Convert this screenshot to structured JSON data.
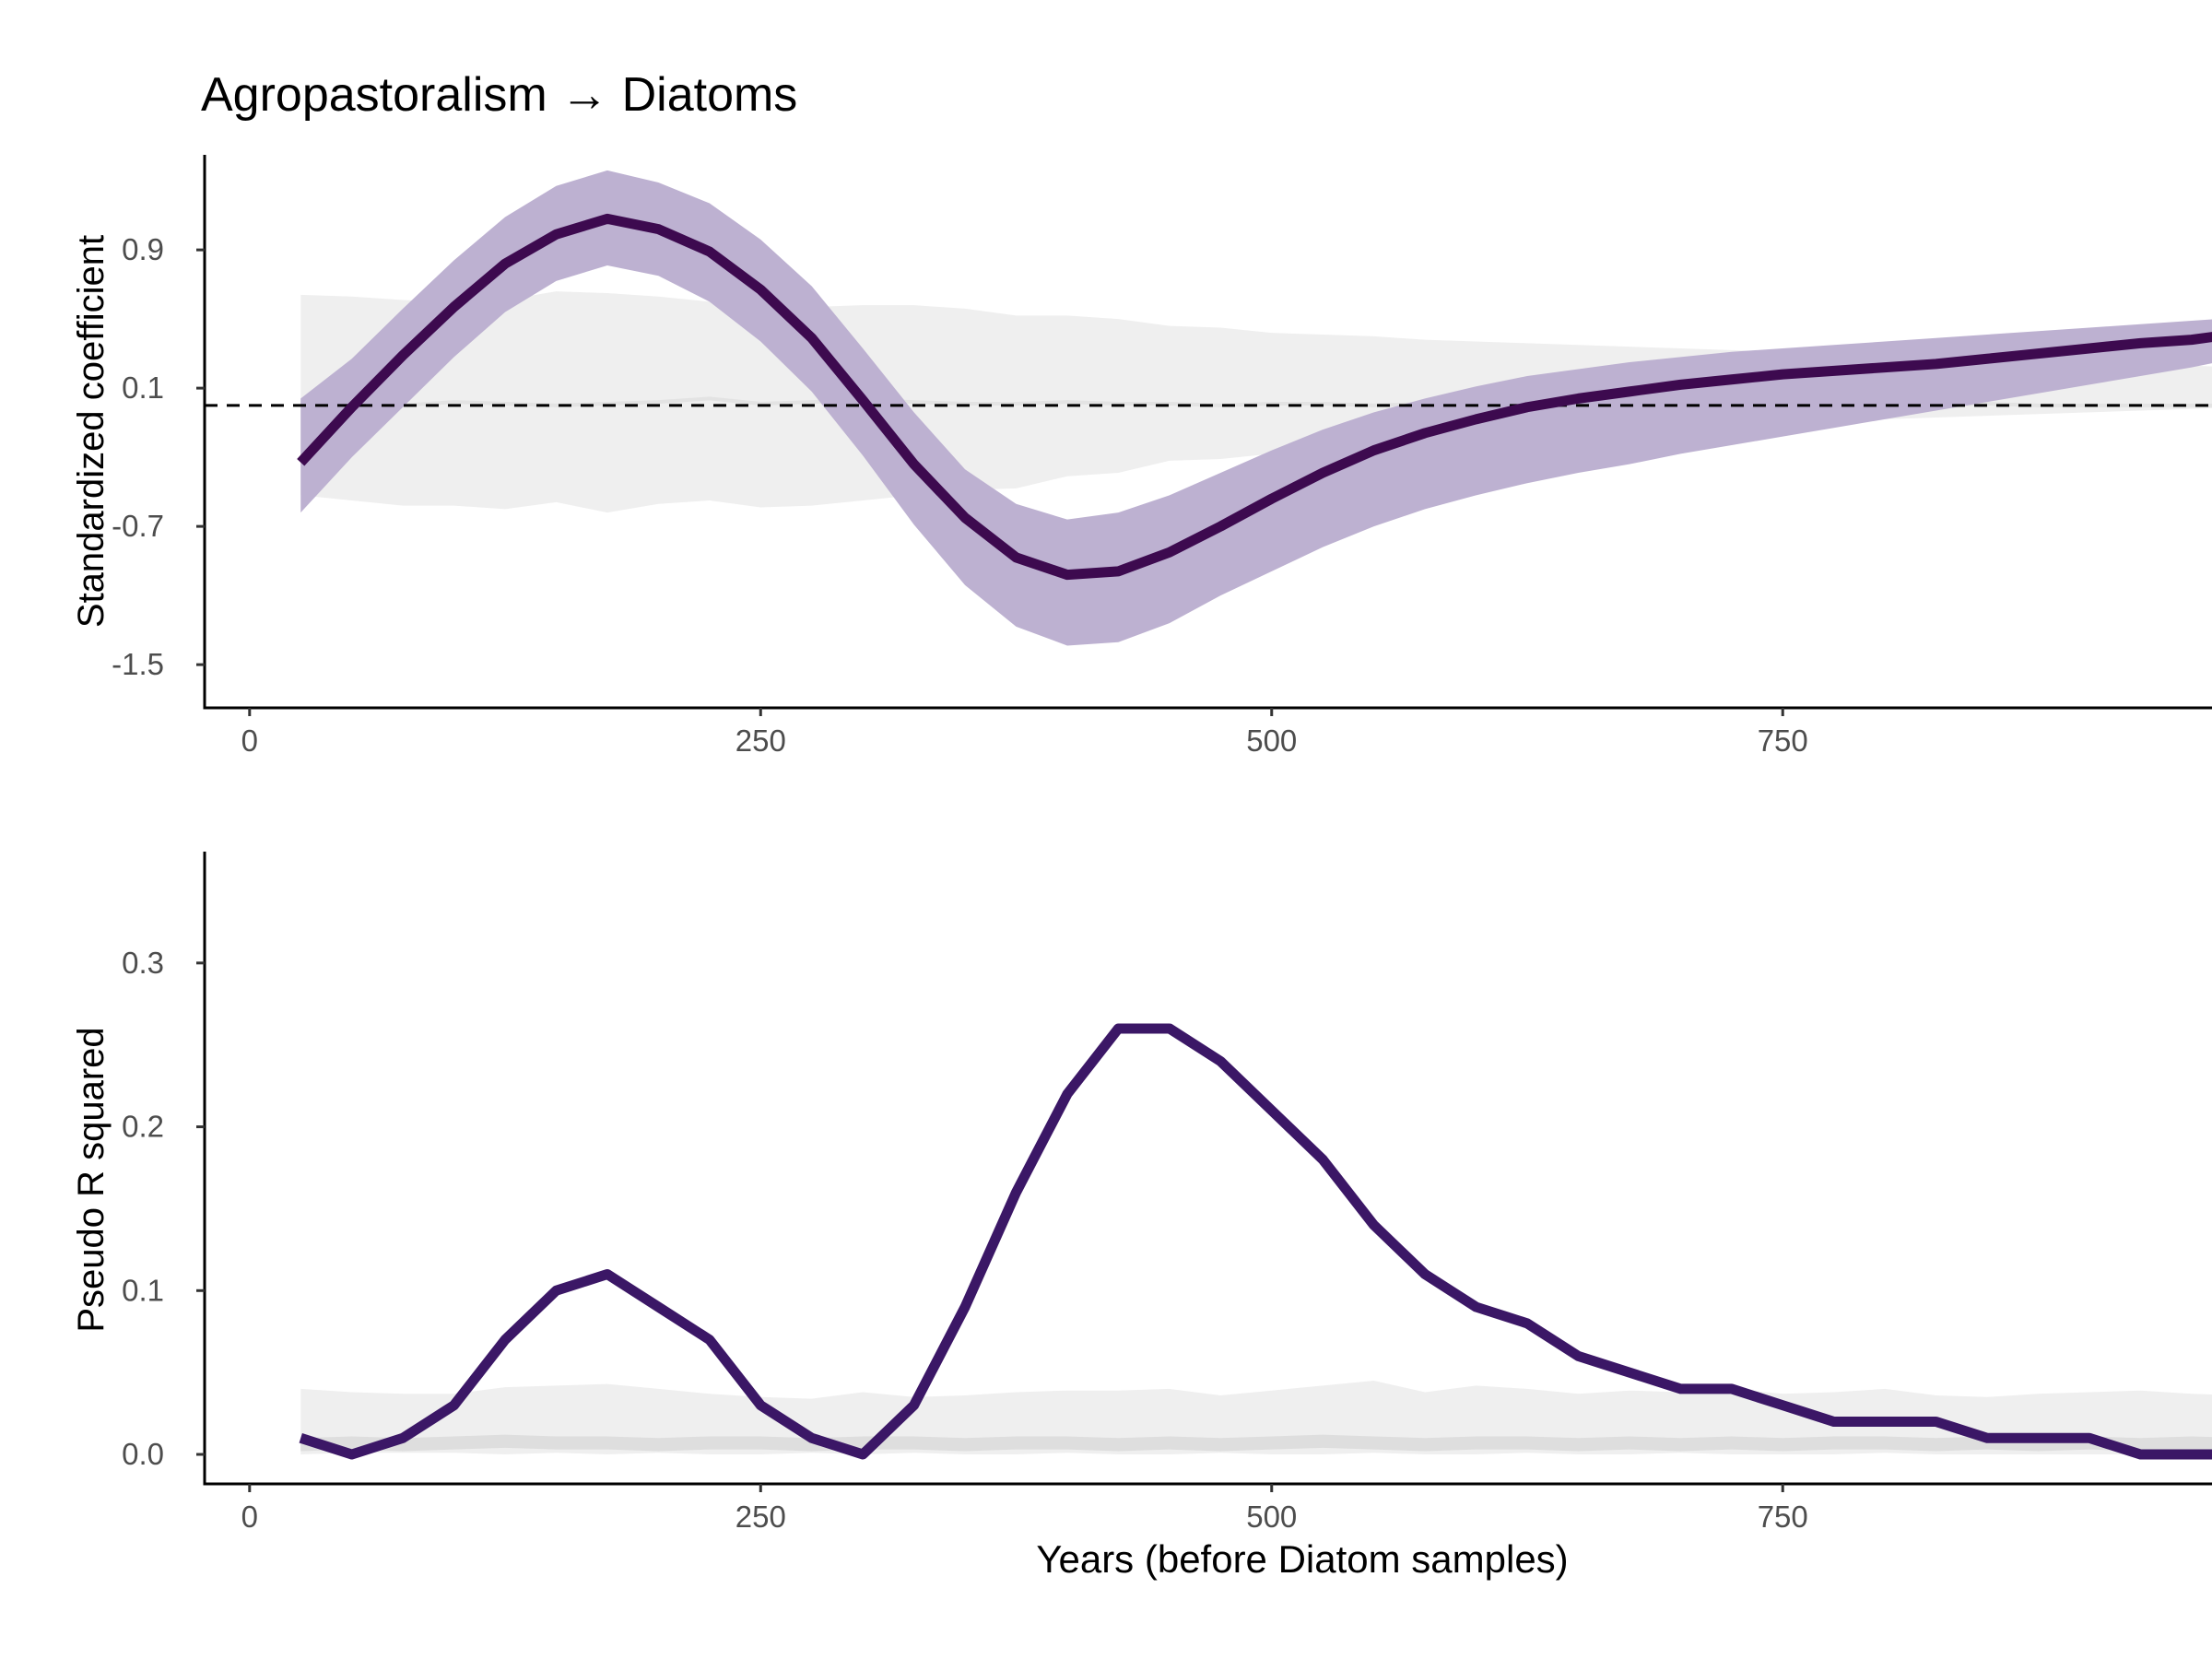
{
  "chart_data": [
    {
      "type": "line",
      "title": "Agropastoralism → Diatoms",
      "ylabel": "Standardized coefficient",
      "xlabel": "",
      "xlim": [
        -22,
        960
      ],
      "ylim": [
        -1.75,
        1.45
      ],
      "x_ticks": [
        0,
        250,
        500,
        750
      ],
      "x_tick_labels": [
        "0",
        "250",
        "500",
        "750"
      ],
      "y_ticks": [
        -1.5,
        -0.7,
        0.1,
        0.9
      ],
      "y_tick_labels": [
        "-1.5",
        "-0.7",
        "0.1",
        "0.9"
      ],
      "reference_line": 0.0,
      "grid": false,
      "colors": {
        "line": "#3d0a4f",
        "ribbon": "#bdb1d1",
        "null_band": "#efefef",
        "null_center": "#e3e3e3",
        "axis": "#000000"
      },
      "x": [
        25,
        50,
        75,
        100,
        125,
        150,
        175,
        200,
        225,
        250,
        275,
        300,
        325,
        350,
        375,
        400,
        425,
        450,
        475,
        500,
        525,
        550,
        575,
        600,
        625,
        650,
        675,
        700,
        725,
        750,
        775,
        800,
        825,
        850,
        875,
        900,
        925,
        950,
        975
      ],
      "series": [
        {
          "values": [
            -0.33,
            -0.01,
            0.29,
            0.57,
            0.82,
            0.99,
            1.08,
            1.02,
            0.89,
            0.67,
            0.39,
            0.03,
            -0.34,
            -0.65,
            -0.88,
            -0.98,
            -0.96,
            -0.85,
            -0.7,
            -0.54,
            -0.39,
            -0.26,
            -0.16,
            -0.08,
            -0.01,
            0.04,
            0.08,
            0.12,
            0.15,
            0.18,
            0.2,
            0.22,
            0.24,
            0.27,
            0.3,
            0.33,
            0.36,
            0.38,
            0.42
          ],
          "lower": [
            -0.62,
            -0.3,
            -0.01,
            0.28,
            0.54,
            0.72,
            0.81,
            0.75,
            0.6,
            0.37,
            0.08,
            -0.29,
            -0.69,
            -1.04,
            -1.28,
            -1.39,
            -1.37,
            -1.26,
            -1.1,
            -0.96,
            -0.82,
            -0.7,
            -0.6,
            -0.52,
            -0.45,
            -0.39,
            -0.34,
            -0.28,
            -0.23,
            -0.18,
            -0.13,
            -0.08,
            -0.03,
            0.02,
            0.07,
            0.12,
            0.17,
            0.22,
            0.28
          ],
          "upper": [
            0.04,
            0.27,
            0.56,
            0.84,
            1.09,
            1.27,
            1.36,
            1.29,
            1.17,
            0.96,
            0.69,
            0.33,
            -0.04,
            -0.37,
            -0.57,
            -0.66,
            -0.62,
            -0.52,
            -0.39,
            -0.26,
            -0.14,
            -0.04,
            0.04,
            0.11,
            0.17,
            0.21,
            0.25,
            0.28,
            0.31,
            0.33,
            0.35,
            0.37,
            0.39,
            0.41,
            0.43,
            0.45,
            0.47,
            0.49,
            0.51
          ]
        }
      ],
      "null_band": {
        "upper": [
          0.64,
          0.63,
          0.61,
          0.6,
          0.61,
          0.66,
          0.65,
          0.63,
          0.6,
          0.58,
          0.57,
          0.58,
          0.58,
          0.56,
          0.52,
          0.52,
          0.5,
          0.46,
          0.45,
          0.42,
          0.41,
          0.4,
          0.38,
          0.37,
          0.36,
          0.35,
          0.34,
          0.33,
          0.32,
          0.31,
          0.3,
          0.29,
          0.28,
          0.27,
          0.26,
          0.25,
          0.24,
          0.23,
          0.22
        ],
        "lower": [
          -0.52,
          -0.55,
          -0.58,
          -0.58,
          -0.6,
          -0.56,
          -0.62,
          -0.57,
          -0.55,
          -0.59,
          -0.58,
          -0.55,
          -0.52,
          -0.49,
          -0.48,
          -0.41,
          -0.39,
          -0.32,
          -0.31,
          -0.28,
          -0.25,
          -0.23,
          -0.21,
          -0.19,
          -0.17,
          -0.15,
          -0.13,
          -0.12,
          -0.11,
          -0.1,
          -0.09,
          -0.08,
          -0.07,
          -0.06,
          -0.05,
          -0.04,
          -0.03,
          -0.02,
          -0.01
        ],
        "center": [
          0.0,
          0.01,
          0.0,
          0.02,
          0.01,
          0.0,
          0.01,
          0.02,
          0.04,
          0.01,
          0.02,
          0.03,
          0.02,
          0.01,
          0.01,
          0.02,
          0.01,
          0.01,
          0.0,
          0.01,
          0.01,
          0.0,
          0.01,
          0.0,
          0.0,
          0.01,
          0.0,
          0.01,
          0.0,
          0.0,
          0.01,
          0.0,
          0.0,
          0.01,
          0.0,
          0.0,
          0.0,
          0.0,
          0.0
        ]
      }
    },
    {
      "type": "line",
      "title": "",
      "ylabel": "Pseudo R squared",
      "xlabel": "Years (before Diatom samples)",
      "xlim": [
        -22,
        960
      ],
      "ylim": [
        -0.018,
        0.368
      ],
      "x_ticks": [
        0,
        250,
        500,
        750
      ],
      "x_tick_labels": [
        "0",
        "250",
        "500",
        "750"
      ],
      "y_ticks": [
        0.0,
        0.1,
        0.2,
        0.3
      ],
      "y_tick_labels": [
        "0.0",
        "0.1",
        "0.2",
        "0.3"
      ],
      "grid": false,
      "colors": {
        "line": "#3b1766",
        "null_band": "#efefef",
        "null_center": "#dedede",
        "axis": "#000000"
      },
      "x": [
        25,
        50,
        75,
        100,
        125,
        150,
        175,
        200,
        225,
        250,
        275,
        300,
        325,
        350,
        375,
        400,
        425,
        450,
        475,
        500,
        525,
        550,
        575,
        600,
        625,
        650,
        675,
        700,
        725,
        750,
        775,
        800,
        825,
        850,
        875,
        900,
        925,
        950,
        975
      ],
      "series": [
        {
          "values": [
            0.01,
            0.0,
            0.01,
            0.03,
            0.07,
            0.1,
            0.11,
            0.09,
            0.07,
            0.03,
            0.01,
            0.0,
            0.03,
            0.09,
            0.16,
            0.22,
            0.26,
            0.26,
            0.24,
            0.21,
            0.18,
            0.14,
            0.11,
            0.09,
            0.08,
            0.06,
            0.05,
            0.04,
            0.04,
            0.03,
            0.02,
            0.02,
            0.02,
            0.01,
            0.01,
            0.01,
            0.0,
            0.0,
            0.0
          ]
        }
      ],
      "null_band": {
        "upper": [
          0.04,
          0.038,
          0.037,
          0.037,
          0.041,
          0.042,
          0.043,
          0.04,
          0.037,
          0.035,
          0.034,
          0.038,
          0.035,
          0.036,
          0.038,
          0.039,
          0.039,
          0.04,
          0.036,
          0.039,
          0.042,
          0.045,
          0.038,
          0.042,
          0.04,
          0.037,
          0.039,
          0.038,
          0.04,
          0.037,
          0.038,
          0.04,
          0.036,
          0.035,
          0.037,
          0.038,
          0.039,
          0.037,
          0.036
        ],
        "lower": [
          0.0,
          0.001,
          0.001,
          0.001,
          0.0,
          0.001,
          0.0,
          0.001,
          0.0,
          0.0,
          0.001,
          0.0,
          0.001,
          0.0,
          0.0,
          0.001,
          0.0,
          0.0,
          0.001,
          0.0,
          0.0,
          0.001,
          0.0,
          0.0,
          0.001,
          0.0,
          0.0,
          0.001,
          0.0,
          0.0,
          0.0,
          0.001,
          0.0,
          0.0,
          0.0,
          0.0,
          0.0,
          0.0,
          0.0
        ],
        "center": [
          0.006,
          0.007,
          0.006,
          0.007,
          0.008,
          0.007,
          0.007,
          0.006,
          0.007,
          0.007,
          0.006,
          0.007,
          0.007,
          0.006,
          0.007,
          0.007,
          0.006,
          0.007,
          0.006,
          0.007,
          0.008,
          0.007,
          0.006,
          0.007,
          0.007,
          0.006,
          0.007,
          0.006,
          0.007,
          0.006,
          0.007,
          0.007,
          0.006,
          0.007,
          0.006,
          0.007,
          0.006,
          0.007,
          0.006
        ]
      }
    }
  ]
}
